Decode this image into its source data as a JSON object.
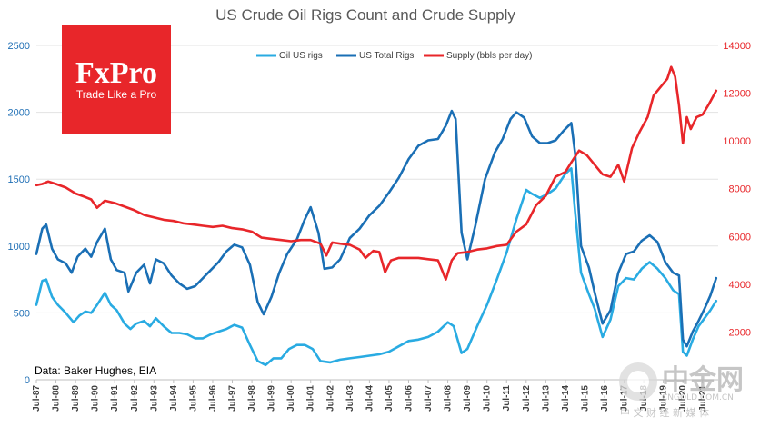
{
  "chart_data": {
    "type": "line",
    "title": "US Crude Oil Rigs Count and Crude Supply",
    "source": "Data: Baker Hughes, EIA",
    "x_range": [
      "1987-07",
      "2021-04"
    ],
    "y_left": {
      "range": [
        0,
        2500
      ],
      "ticks": [
        0,
        500,
        1000,
        1500,
        2000,
        2500
      ]
    },
    "y_right": {
      "range": [
        0,
        14000
      ],
      "ticks": [
        2000,
        4000,
        6000,
        8000,
        10000,
        12000,
        14000
      ]
    },
    "x_tick_labels": [
      "Jul-87",
      "Jul-88",
      "Jul-89",
      "Jul-90",
      "Jul-91",
      "Jul-92",
      "Jul-93",
      "Jul-94",
      "Jul-95",
      "Jul-96",
      "Jul-97",
      "Jul-98",
      "Jul-99",
      "Jul-00",
      "Jul-01",
      "Jul-02",
      "Jul-03",
      "Jul-04",
      "Jul-05",
      "Jul-06",
      "Jul-07",
      "Jul-08",
      "Jul-09",
      "Jul-10",
      "Jul-11",
      "Jul-12",
      "Jul-13",
      "Jul-14",
      "Jul-15",
      "Jul-16",
      "Jul-17",
      "Jul-18",
      "Jul-19",
      "Jul-20",
      "Jul-21"
    ],
    "legend_placement": "top",
    "grid": "horizontal",
    "series": [
      {
        "name": "Oil US rigs",
        "axis": "left",
        "color": "#29abe2",
        "points": [
          [
            1987.5,
            560
          ],
          [
            1987.8,
            740
          ],
          [
            1988.0,
            750
          ],
          [
            1988.3,
            620
          ],
          [
            1988.6,
            560
          ],
          [
            1989.0,
            500
          ],
          [
            1989.4,
            430
          ],
          [
            1989.7,
            480
          ],
          [
            1990.0,
            510
          ],
          [
            1990.3,
            500
          ],
          [
            1990.6,
            560
          ],
          [
            1991.0,
            650
          ],
          [
            1991.3,
            560
          ],
          [
            1991.6,
            520
          ],
          [
            1992.0,
            420
          ],
          [
            1992.3,
            380
          ],
          [
            1992.6,
            420
          ],
          [
            1993.0,
            440
          ],
          [
            1993.3,
            400
          ],
          [
            1993.6,
            460
          ],
          [
            1994.0,
            400
          ],
          [
            1994.4,
            350
          ],
          [
            1994.8,
            350
          ],
          [
            1995.2,
            340
          ],
          [
            1995.6,
            310
          ],
          [
            1996.0,
            310
          ],
          [
            1996.4,
            340
          ],
          [
            1996.8,
            360
          ],
          [
            1997.2,
            380
          ],
          [
            1997.6,
            410
          ],
          [
            1998.0,
            390
          ],
          [
            1998.4,
            260
          ],
          [
            1998.8,
            140
          ],
          [
            1999.2,
            110
          ],
          [
            1999.6,
            160
          ],
          [
            2000.0,
            160
          ],
          [
            2000.4,
            230
          ],
          [
            2000.8,
            260
          ],
          [
            2001.2,
            260
          ],
          [
            2001.6,
            230
          ],
          [
            2002.0,
            140
          ],
          [
            2002.5,
            130
          ],
          [
            2003.0,
            150
          ],
          [
            2003.5,
            160
          ],
          [
            2004.0,
            170
          ],
          [
            2004.5,
            180
          ],
          [
            2005.0,
            190
          ],
          [
            2005.5,
            210
          ],
          [
            2006.0,
            250
          ],
          [
            2006.5,
            290
          ],
          [
            2007.0,
            300
          ],
          [
            2007.5,
            320
          ],
          [
            2008.0,
            360
          ],
          [
            2008.5,
            430
          ],
          [
            2008.8,
            400
          ],
          [
            2009.2,
            200
          ],
          [
            2009.5,
            230
          ],
          [
            2010.0,
            400
          ],
          [
            2010.5,
            560
          ],
          [
            2011.0,
            750
          ],
          [
            2011.5,
            950
          ],
          [
            2012.0,
            1200
          ],
          [
            2012.5,
            1420
          ],
          [
            2012.8,
            1390
          ],
          [
            2013.2,
            1360
          ],
          [
            2013.6,
            1390
          ],
          [
            2014.0,
            1430
          ],
          [
            2014.5,
            1540
          ],
          [
            2014.8,
            1580
          ],
          [
            2015.0,
            1250
          ],
          [
            2015.3,
            800
          ],
          [
            2015.7,
            640
          ],
          [
            2016.0,
            530
          ],
          [
            2016.4,
            320
          ],
          [
            2016.8,
            450
          ],
          [
            2017.2,
            700
          ],
          [
            2017.6,
            760
          ],
          [
            2018.0,
            750
          ],
          [
            2018.4,
            830
          ],
          [
            2018.8,
            880
          ],
          [
            2019.2,
            830
          ],
          [
            2019.6,
            760
          ],
          [
            2020.0,
            670
          ],
          [
            2020.3,
            640
          ],
          [
            2020.5,
            210
          ],
          [
            2020.7,
            180
          ],
          [
            2021.0,
            300
          ],
          [
            2021.3,
            400
          ],
          [
            2021.6,
            460
          ],
          [
            2021.9,
            520
          ],
          [
            2022.2,
            590
          ]
        ]
      },
      {
        "name": "US Total Rigs",
        "axis": "left",
        "color": "#1a6fb5",
        "points": [
          [
            1987.5,
            940
          ],
          [
            1987.8,
            1130
          ],
          [
            1988.0,
            1160
          ],
          [
            1988.3,
            980
          ],
          [
            1988.6,
            900
          ],
          [
            1989.0,
            870
          ],
          [
            1989.3,
            800
          ],
          [
            1989.6,
            920
          ],
          [
            1990.0,
            980
          ],
          [
            1990.3,
            920
          ],
          [
            1990.6,
            1030
          ],
          [
            1991.0,
            1130
          ],
          [
            1991.3,
            900
          ],
          [
            1991.6,
            820
          ],
          [
            1992.0,
            800
          ],
          [
            1992.2,
            660
          ],
          [
            1992.6,
            800
          ],
          [
            1993.0,
            860
          ],
          [
            1993.3,
            720
          ],
          [
            1993.6,
            900
          ],
          [
            1994.0,
            870
          ],
          [
            1994.4,
            780
          ],
          [
            1994.8,
            720
          ],
          [
            1995.2,
            680
          ],
          [
            1995.6,
            700
          ],
          [
            1996.0,
            760
          ],
          [
            1996.4,
            820
          ],
          [
            1996.8,
            880
          ],
          [
            1997.2,
            960
          ],
          [
            1997.6,
            1010
          ],
          [
            1998.0,
            990
          ],
          [
            1998.4,
            860
          ],
          [
            1998.8,
            580
          ],
          [
            1999.1,
            490
          ],
          [
            1999.5,
            620
          ],
          [
            1999.9,
            800
          ],
          [
            2000.3,
            940
          ],
          [
            2000.8,
            1050
          ],
          [
            2001.2,
            1200
          ],
          [
            2001.5,
            1290
          ],
          [
            2001.9,
            1100
          ],
          [
            2002.2,
            830
          ],
          [
            2002.6,
            840
          ],
          [
            2003.0,
            900
          ],
          [
            2003.5,
            1060
          ],
          [
            2004.0,
            1130
          ],
          [
            2004.5,
            1230
          ],
          [
            2005.0,
            1300
          ],
          [
            2005.5,
            1400
          ],
          [
            2006.0,
            1510
          ],
          [
            2006.5,
            1650
          ],
          [
            2007.0,
            1750
          ],
          [
            2007.5,
            1790
          ],
          [
            2008.0,
            1800
          ],
          [
            2008.4,
            1900
          ],
          [
            2008.7,
            2010
          ],
          [
            2008.9,
            1950
          ],
          [
            2009.2,
            1100
          ],
          [
            2009.5,
            900
          ],
          [
            2009.9,
            1150
          ],
          [
            2010.4,
            1500
          ],
          [
            2010.9,
            1700
          ],
          [
            2011.3,
            1800
          ],
          [
            2011.7,
            1950
          ],
          [
            2012.0,
            2000
          ],
          [
            2012.4,
            1960
          ],
          [
            2012.8,
            1820
          ],
          [
            2013.2,
            1770
          ],
          [
            2013.6,
            1770
          ],
          [
            2014.0,
            1790
          ],
          [
            2014.4,
            1860
          ],
          [
            2014.8,
            1920
          ],
          [
            2015.0,
            1690
          ],
          [
            2015.3,
            1000
          ],
          [
            2015.7,
            840
          ],
          [
            2016.0,
            650
          ],
          [
            2016.4,
            420
          ],
          [
            2016.8,
            520
          ],
          [
            2017.2,
            800
          ],
          [
            2017.6,
            940
          ],
          [
            2018.0,
            960
          ],
          [
            2018.4,
            1040
          ],
          [
            2018.8,
            1080
          ],
          [
            2019.2,
            1030
          ],
          [
            2019.6,
            880
          ],
          [
            2020.0,
            800
          ],
          [
            2020.3,
            780
          ],
          [
            2020.5,
            300
          ],
          [
            2020.7,
            250
          ],
          [
            2021.0,
            360
          ],
          [
            2021.3,
            440
          ],
          [
            2021.6,
            530
          ],
          [
            2021.9,
            630
          ],
          [
            2022.2,
            760
          ]
        ]
      },
      {
        "name": "Supply (bbls per day)",
        "axis": "right",
        "color": "#e8262a",
        "points": [
          [
            1987.5,
            8150
          ],
          [
            1987.8,
            8200
          ],
          [
            1988.1,
            8300
          ],
          [
            1988.5,
            8200
          ],
          [
            1989.0,
            8050
          ],
          [
            1989.5,
            7800
          ],
          [
            1990.0,
            7650
          ],
          [
            1990.3,
            7550
          ],
          [
            1990.6,
            7200
          ],
          [
            1991.0,
            7500
          ],
          [
            1991.5,
            7400
          ],
          [
            1992.0,
            7250
          ],
          [
            1992.5,
            7100
          ],
          [
            1993.0,
            6900
          ],
          [
            1993.5,
            6800
          ],
          [
            1994.0,
            6700
          ],
          [
            1994.5,
            6650
          ],
          [
            1995.0,
            6550
          ],
          [
            1995.5,
            6500
          ],
          [
            1996.0,
            6450
          ],
          [
            1996.5,
            6400
          ],
          [
            1997.0,
            6450
          ],
          [
            1997.5,
            6350
          ],
          [
            1998.0,
            6300
          ],
          [
            1998.5,
            6200
          ],
          [
            1999.0,
            5950
          ],
          [
            1999.5,
            5900
          ],
          [
            2000.0,
            5850
          ],
          [
            2000.5,
            5800
          ],
          [
            2001.0,
            5850
          ],
          [
            2001.5,
            5850
          ],
          [
            2002.0,
            5700
          ],
          [
            2002.3,
            5200
          ],
          [
            2002.6,
            5750
          ],
          [
            2003.0,
            5700
          ],
          [
            2003.5,
            5650
          ],
          [
            2004.0,
            5450
          ],
          [
            2004.3,
            5100
          ],
          [
            2004.7,
            5400
          ],
          [
            2005.0,
            5350
          ],
          [
            2005.3,
            4500
          ],
          [
            2005.6,
            5000
          ],
          [
            2006.0,
            5100
          ],
          [
            2006.5,
            5100
          ],
          [
            2007.0,
            5100
          ],
          [
            2007.5,
            5050
          ],
          [
            2008.0,
            5000
          ],
          [
            2008.4,
            4200
          ],
          [
            2008.7,
            5000
          ],
          [
            2009.0,
            5300
          ],
          [
            2009.5,
            5350
          ],
          [
            2010.0,
            5450
          ],
          [
            2010.5,
            5500
          ],
          [
            2011.0,
            5600
          ],
          [
            2011.5,
            5650
          ],
          [
            2012.0,
            6200
          ],
          [
            2012.5,
            6500
          ],
          [
            2013.0,
            7300
          ],
          [
            2013.5,
            7700
          ],
          [
            2014.0,
            8500
          ],
          [
            2014.5,
            8700
          ],
          [
            2014.8,
            9100
          ],
          [
            2015.2,
            9600
          ],
          [
            2015.6,
            9400
          ],
          [
            2016.0,
            9000
          ],
          [
            2016.4,
            8600
          ],
          [
            2016.8,
            8500
          ],
          [
            2017.2,
            9000
          ],
          [
            2017.5,
            8300
          ],
          [
            2017.9,
            9700
          ],
          [
            2018.3,
            10400
          ],
          [
            2018.7,
            11000
          ],
          [
            2019.0,
            11900
          ],
          [
            2019.4,
            12300
          ],
          [
            2019.7,
            12600
          ],
          [
            2019.9,
            13100
          ],
          [
            2020.1,
            12700
          ],
          [
            2020.3,
            11500
          ],
          [
            2020.5,
            9900
          ],
          [
            2020.7,
            11000
          ],
          [
            2020.9,
            10500
          ],
          [
            2021.2,
            11000
          ],
          [
            2021.5,
            11100
          ],
          [
            2021.8,
            11500
          ],
          [
            2022.2,
            12100
          ]
        ]
      }
    ]
  },
  "branding": {
    "logo_text": "FxPro",
    "logo_tagline": "Trade Like a Pro",
    "logo_color": "#e8262a",
    "watermark_text": "中金网",
    "watermark_subtext": "中 文 财 经 新 媒 体",
    "watermark_url": "CNGOLD.COM.CN"
  }
}
